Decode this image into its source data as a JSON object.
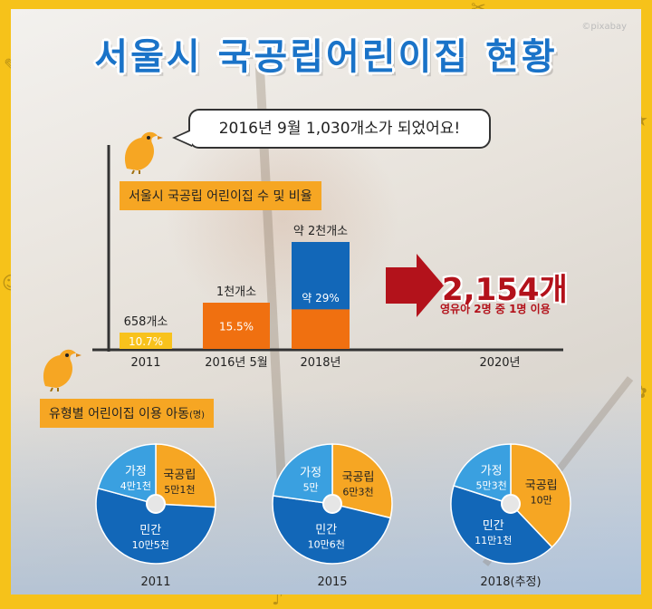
{
  "title": "서울시 국공립어린이집 현황",
  "watermark": "©pixabay",
  "bubble": "2016년 9월 1,030개소가 되었어요!",
  "bar_chart_label": "서울시 국공립 어린이집 수 및 비율",
  "pie_chart_label": "유형별 어린이집 이용 아동",
  "pie_chart_unit": "(명)",
  "projection": {
    "value": "2,154개",
    "note": "영유아 2명 중 1명 이용"
  },
  "colors": {
    "orange": "#f6a623",
    "deep_orange": "#f07010",
    "blue": "#1267b8",
    "sky": "#3aa0e0",
    "yellow": "#f8c21c",
    "red": "#b3121b"
  },
  "chart_data": [
    {
      "type": "bar",
      "categories": [
        "2011",
        "2016년 5월",
        "2018년",
        "2020년"
      ],
      "values": [
        658,
        1000,
        2000,
        2154
      ],
      "value_labels": [
        "658개소",
        "1천개소",
        "약 2천개소",
        ""
      ],
      "ratio_labels": [
        "10.7%",
        "15.5%",
        "약 29%",
        ""
      ],
      "ratios": [
        10.7,
        15.5,
        29
      ],
      "title": "서울시 국공립 어린이집 수 및 비율"
    },
    {
      "type": "pie",
      "year": "2011",
      "slices": [
        {
          "name": "국공립",
          "label": "5만1천",
          "value": 51000
        },
        {
          "name": "민간",
          "label": "10만5천",
          "value": 105000
        },
        {
          "name": "가정",
          "label": "4만1천",
          "value": 41000
        }
      ]
    },
    {
      "type": "pie",
      "year": "2015",
      "slices": [
        {
          "name": "국공립",
          "label": "6만3천",
          "value": 63000
        },
        {
          "name": "민간",
          "label": "10만6천",
          "value": 106000
        },
        {
          "name": "가정",
          "label": "5만",
          "value": 50000
        }
      ]
    },
    {
      "type": "pie",
      "year": "2018(추정)",
      "slices": [
        {
          "name": "국공립",
          "label": "10만",
          "value": 100000
        },
        {
          "name": "민간",
          "label": "11만1천",
          "value": 111000
        },
        {
          "name": "가정",
          "label": "5만3천",
          "value": 53000
        }
      ]
    }
  ]
}
